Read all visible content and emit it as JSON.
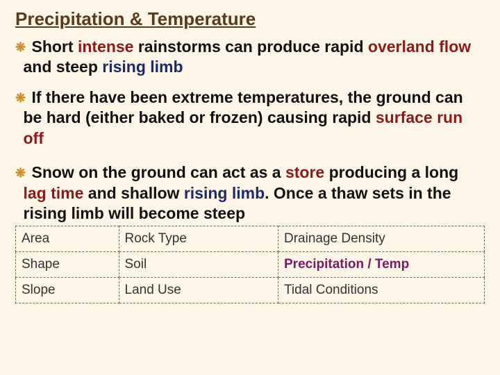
{
  "title": "Precipitation & Temperature",
  "bullets": [
    {
      "pre": "Short ",
      "hl1": "intense",
      "mid1": " rainstorms can produce rapid ",
      "hl2": "overland flow",
      "mid2": " and steep ",
      "hl3": "rising limb",
      "post": ""
    },
    {
      "pre": "If there have been extreme temperatures, the ground can be hard (either baked or frozen) causing rapid ",
      "hl1": "surface run off",
      "mid1": "",
      "hl2": "",
      "mid2": "",
      "hl3": "",
      "post": ""
    },
    {
      "pre": "Snow on the ground can act as a ",
      "hl1": "store",
      "mid1": " producing a long ",
      "hl2": "lag time",
      "mid2": " and shallow ",
      "hl3": "rising limb",
      "post": ". Once a thaw sets in the rising limb will become steep"
    }
  ],
  "bullet_marker": "❋",
  "colors": {
    "hl1": "#8b1a1a",
    "hl2": "#1a2a6a",
    "title": "#5a3a1a",
    "bg": "#fdf6e8",
    "table_highlight": "#7a1a62",
    "bullet_marker": "#c9912f",
    "table_border": "#7a6a4a"
  },
  "table": {
    "columns": [
      "c1",
      "c2",
      "c3"
    ],
    "col_widths_pct": [
      22,
      34,
      44
    ],
    "rows": [
      [
        "Area",
        "Rock Type",
        "Drainage Density"
      ],
      [
        "Shape",
        "Soil",
        "Precipitation / Temp"
      ],
      [
        "Slope",
        "Land Use",
        "Tidal Conditions"
      ]
    ],
    "highlight_cell": "Precipitation / Temp",
    "fontsize": 19,
    "border_style": "dashed"
  },
  "fontsize": {
    "title": 26,
    "body": 23
  }
}
